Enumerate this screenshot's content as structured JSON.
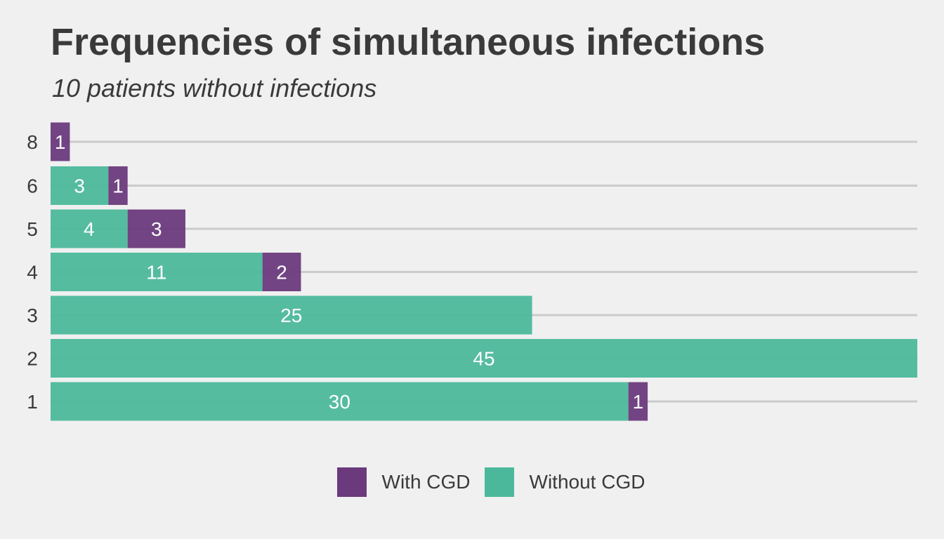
{
  "chart_data": {
    "type": "bar",
    "orientation": "horizontal",
    "stacked": true,
    "title": "Frequencies of simultaneous infections",
    "subtitle": "10 patients without infections",
    "xlabel": "",
    "ylabel": "",
    "categories": [
      "1",
      "2",
      "3",
      "4",
      "5",
      "6",
      "8"
    ],
    "series": [
      {
        "name": "Without CGD",
        "color": "#4cb89b",
        "values": [
          30,
          45,
          25,
          11,
          4,
          3,
          0
        ]
      },
      {
        "name": "With CGD",
        "color": "#6a3a7c",
        "values": [
          1,
          0,
          0,
          2,
          3,
          1,
          1
        ]
      }
    ],
    "xlim": [
      0,
      45
    ],
    "grid": true,
    "legend_position": "bottom",
    "legend_order": [
      "With CGD",
      "Without CGD"
    ]
  }
}
